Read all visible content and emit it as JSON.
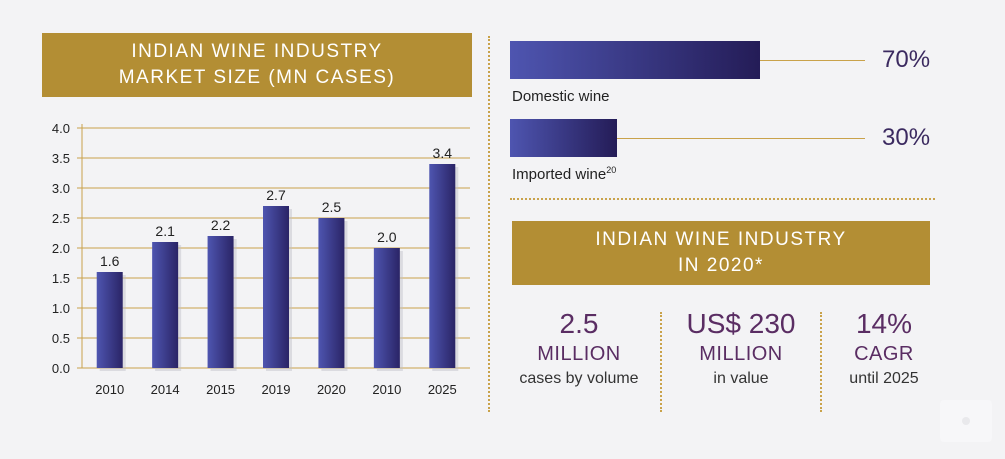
{
  "left_panel": {
    "title_line1": "INDIAN WINE INDUSTRY",
    "title_line2": "MARKET SIZE (MN CASES)"
  },
  "chart_data": {
    "type": "bar",
    "title": "INDIAN WINE INDUSTRY MARKET SIZE (MN CASES)",
    "categories": [
      "2010",
      "2014",
      "2015",
      "2019",
      "2020",
      "2010",
      "2025"
    ],
    "values": [
      1.6,
      2.1,
      2.2,
      2.7,
      2.5,
      2.0,
      3.4
    ],
    "value_labels": [
      "1.6",
      "2.1",
      "2.2",
      "2.7",
      "2.5",
      "2.0",
      "3.4"
    ],
    "y_ticks": [
      "4.0",
      "3.5",
      "3.0",
      "2.5",
      "2.0",
      "1.5",
      "1.0",
      "0.5",
      "0.0"
    ],
    "ylim": [
      0,
      4
    ],
    "grid": true,
    "xlabel": "",
    "ylabel": "",
    "bar_color_start": "#4e55b0",
    "bar_color_end": "#2a2466",
    "grid_color": "#c9a24a"
  },
  "shares": [
    {
      "label": "Domestic wine",
      "sup": "",
      "percent": "70%"
    },
    {
      "label": "Imported wine",
      "sup": "20",
      "percent": "30%"
    }
  ],
  "right_panel": {
    "title_line1": "INDIAN WINE INDUSTRY",
    "title_line2": "IN 2020*"
  },
  "stats": [
    {
      "big": "2.5",
      "mid": "MILLION",
      "small": "cases by volume"
    },
    {
      "big": "US$ 230",
      "mid": "MILLION",
      "small": "in value"
    },
    {
      "big": "14%",
      "mid": "CAGR",
      "small": "until 2025"
    }
  ],
  "colors": {
    "gold": "#b38e34",
    "navy": "#241c57",
    "purple_text": "#5a2d63",
    "background": "#f3f3f5"
  }
}
